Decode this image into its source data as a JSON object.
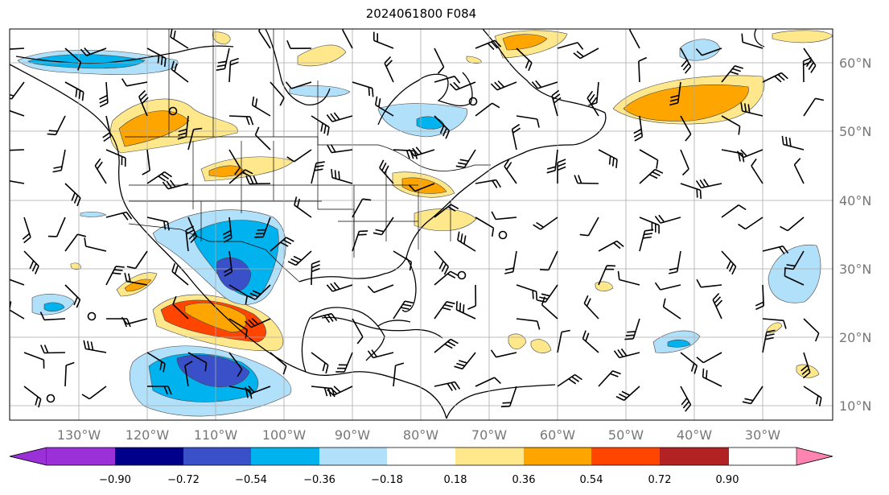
{
  "title": "2024061800 F084",
  "map": {
    "projection": "PlateCarree",
    "lon_range": [
      -142,
      -20
    ],
    "lat_range": [
      8,
      65
    ],
    "gridlines": true,
    "lon_labels": [
      "130°W",
      "120°W",
      "110°W",
      "100°W",
      "90°W",
      "80°W",
      "70°W",
      "60°W",
      "50°W",
      "40°W",
      "30°W"
    ],
    "lat_labels": [
      "60°N",
      "50°N",
      "40°N",
      "30°N",
      "20°N",
      "10°N"
    ],
    "lat_label_side": "right",
    "lon_label_side": "bottom",
    "layers": [
      "filled contours (anomaly field)",
      "wind barbs",
      "coastlines",
      "country borders",
      "US state borders"
    ]
  },
  "colorbar": {
    "orientation": "horizontal",
    "extend": "both",
    "tick_labels": [
      "−0.90",
      "−0.72",
      "−0.54",
      "−0.36",
      "−0.18",
      "0.18",
      "0.36",
      "0.54",
      "0.72",
      "0.90"
    ],
    "colors": [
      "#9b30d9",
      "#00008b",
      "#3a50c8",
      "#00b2ee",
      "#b0e0fa",
      "#ffffff",
      "#ffe88c",
      "#ffa500",
      "#ff4500",
      "#b22222",
      "#ff85b0"
    ]
  }
}
